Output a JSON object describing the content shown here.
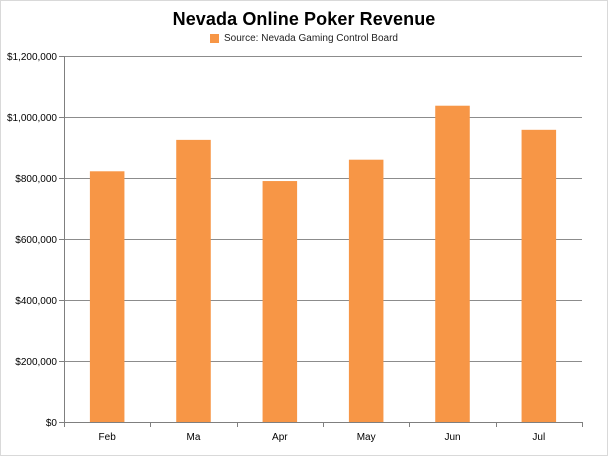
{
  "colors": {
    "bar": "#f79646",
    "grid": "#8c8c8c",
    "axis": "#7f7f7f",
    "text": "#000000"
  },
  "chart_data": {
    "type": "bar",
    "title": "Nevada Online Poker Revenue",
    "legend": {
      "position": "top",
      "entries": [
        "Source: Nevada Gaming Control Board"
      ]
    },
    "categories": [
      "Feb",
      "Ma",
      "Apr",
      "May",
      "Jun",
      "Jul"
    ],
    "series": [
      {
        "name": "Source: Nevada Gaming Control Board",
        "values": [
          822000,
          925000,
          790000,
          860000,
          1037000,
          958000
        ]
      }
    ],
    "xlabel": "",
    "ylabel": "",
    "ylim": [
      0,
      1200000
    ],
    "y_ticks": [
      0,
      200000,
      400000,
      600000,
      800000,
      1000000,
      1200000
    ],
    "y_tick_labels": [
      "$0",
      "$200,000",
      "$400,000",
      "$600,000",
      "$800,000",
      "$1,000,000",
      "$1,200,000"
    ],
    "grid": true
  }
}
